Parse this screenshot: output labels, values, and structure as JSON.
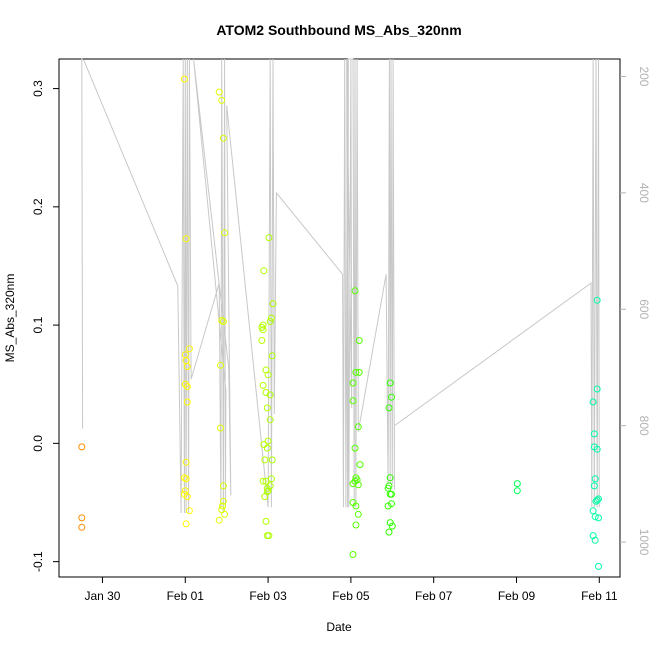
{
  "chart_data": {
    "type": "scatter",
    "title": "ATOM2 Southbound MS_Abs_320nm",
    "xlabel": "Date",
    "ylabel": "MS_Abs_320nm",
    "x_ticks": [
      "Jan 30",
      "Feb 01",
      "Feb 03",
      "Feb 05",
      "Feb 07",
      "Feb 09",
      "Feb 11"
    ],
    "x_tick_days": [
      30,
      32,
      34,
      36,
      38,
      40,
      42
    ],
    "xlim": [
      28.95,
      42.5
    ],
    "ylim": [
      -0.113,
      0.325
    ],
    "y_ticks": [
      -0.1,
      0.0,
      0.1,
      0.2,
      0.3
    ],
    "y_tick_labels": [
      "-0.1",
      "0.0",
      "0.1",
      "0.2",
      "0.3"
    ],
    "y2_ticks": [
      200,
      400,
      600,
      800,
      1000
    ],
    "y2_tick_labels": [
      "200",
      "400",
      "600",
      "800",
      "1000"
    ],
    "y2lim": [
      1060,
      170
    ],
    "grid": false,
    "legend": "none",
    "points": [
      [
        29.5,
        -0.003
      ],
      [
        29.5,
        -0.063
      ],
      [
        29.5,
        -0.071
      ],
      [
        31.98,
        0.308
      ],
      [
        32.02,
        0.173
      ],
      [
        32.0,
        0.075
      ],
      [
        32.02,
        0.07
      ],
      [
        32.1,
        0.08
      ],
      [
        32.05,
        0.065
      ],
      [
        32.0,
        0.05
      ],
      [
        32.05,
        0.048
      ],
      [
        32.05,
        0.035
      ],
      [
        32.02,
        -0.016
      ],
      [
        31.98,
        -0.029
      ],
      [
        32.02,
        -0.03
      ],
      [
        32.0,
        -0.04
      ],
      [
        31.98,
        -0.043
      ],
      [
        32.05,
        -0.045
      ],
      [
        32.1,
        -0.057
      ],
      [
        32.02,
        -0.068
      ],
      [
        32.82,
        0.297
      ],
      [
        32.88,
        0.29
      ],
      [
        32.92,
        0.258
      ],
      [
        32.95,
        0.178
      ],
      [
        32.88,
        0.104
      ],
      [
        32.92,
        0.103
      ],
      [
        32.85,
        0.066
      ],
      [
        32.85,
        0.013
      ],
      [
        32.92,
        -0.036
      ],
      [
        32.92,
        -0.049
      ],
      [
        32.9,
        -0.053
      ],
      [
        32.88,
        -0.056
      ],
      [
        32.95,
        -0.06
      ],
      [
        32.82,
        -0.065
      ],
      [
        34.02,
        0.174
      ],
      [
        34.12,
        0.118
      ],
      [
        34.08,
        0.106
      ],
      [
        34.05,
        0.103
      ],
      [
        34.1,
        0.074
      ],
      [
        34.0,
        0.058
      ],
      [
        34.05,
        0.041
      ],
      [
        34.05,
        0.02
      ],
      [
        34.0,
        0.002
      ],
      [
        34.1,
        -0.014
      ],
      [
        34.08,
        -0.03
      ],
      [
        34.05,
        -0.036
      ],
      [
        34.0,
        -0.04
      ],
      [
        33.98,
        -0.078
      ],
      [
        34.02,
        -0.078
      ],
      [
        33.9,
        0.146
      ],
      [
        33.88,
        0.1
      ],
      [
        33.85,
        0.098
      ],
      [
        33.88,
        0.096
      ],
      [
        33.85,
        0.087
      ],
      [
        33.95,
        0.062
      ],
      [
        33.88,
        0.049
      ],
      [
        33.95,
        0.043
      ],
      [
        33.98,
        0.03
      ],
      [
        33.9,
        -0.001
      ],
      [
        33.98,
        -0.004
      ],
      [
        33.92,
        -0.014
      ],
      [
        33.88,
        -0.032
      ],
      [
        33.95,
        -0.032
      ],
      [
        33.98,
        -0.038
      ],
      [
        33.92,
        -0.045
      ],
      [
        33.98,
        -0.041
      ],
      [
        33.95,
        -0.066
      ],
      [
        36.1,
        0.129
      ],
      [
        36.2,
        0.087
      ],
      [
        36.12,
        0.06
      ],
      [
        36.2,
        0.06
      ],
      [
        36.05,
        0.051
      ],
      [
        36.05,
        0.036
      ],
      [
        36.18,
        0.014
      ],
      [
        36.1,
        -0.004
      ],
      [
        36.22,
        -0.018
      ],
      [
        36.12,
        -0.029
      ],
      [
        36.15,
        -0.031
      ],
      [
        36.1,
        -0.032
      ],
      [
        36.05,
        -0.034
      ],
      [
        36.18,
        -0.035
      ],
      [
        36.05,
        -0.05
      ],
      [
        36.12,
        -0.053
      ],
      [
        36.18,
        -0.06
      ],
      [
        36.12,
        -0.069
      ],
      [
        36.05,
        -0.094
      ],
      [
        36.95,
        0.051
      ],
      [
        36.98,
        0.039
      ],
      [
        36.92,
        0.03
      ],
      [
        36.95,
        -0.029
      ],
      [
        36.92,
        -0.036
      ],
      [
        36.9,
        -0.038
      ],
      [
        36.98,
        -0.043
      ],
      [
        36.95,
        -0.043
      ],
      [
        36.98,
        -0.051
      ],
      [
        36.9,
        -0.053
      ],
      [
        36.95,
        -0.067
      ],
      [
        37.0,
        -0.07
      ],
      [
        36.92,
        -0.075
      ],
      [
        40.02,
        -0.034
      ],
      [
        40.02,
        -0.04
      ],
      [
        41.95,
        0.121
      ],
      [
        41.95,
        0.046
      ],
      [
        41.85,
        0.035
      ],
      [
        41.88,
        0.008
      ],
      [
        41.88,
        -0.003
      ],
      [
        41.95,
        -0.005
      ],
      [
        41.9,
        -0.03
      ],
      [
        41.88,
        -0.036
      ],
      [
        41.98,
        -0.047
      ],
      [
        41.92,
        -0.049
      ],
      [
        41.95,
        -0.048
      ],
      [
        41.85,
        -0.057
      ],
      [
        41.9,
        -0.062
      ],
      [
        41.98,
        -0.063
      ],
      [
        41.85,
        -0.078
      ],
      [
        41.9,
        -0.082
      ],
      [
        41.98,
        -0.104
      ]
    ],
    "colors": {
      "line": "#c8c8c8",
      "axis": "#000000",
      "right_axis": "#b3b3b3",
      "point_early": "#ff8c00",
      "point_late": "#00ffa0"
    },
    "line_y2": [
      [
        29.52,
        805
      ],
      [
        29.5,
        170
      ],
      [
        29.55,
        172
      ],
      [
        31.82,
        560
      ],
      [
        31.9,
        950
      ],
      [
        31.95,
        170
      ],
      [
        31.98,
        950
      ],
      [
        32.0,
        170
      ],
      [
        32.02,
        950
      ],
      [
        32.05,
        170
      ],
      [
        32.08,
        950
      ],
      [
        32.1,
        170
      ],
      [
        32.14,
        720
      ],
      [
        32.82,
        555
      ],
      [
        32.86,
        940
      ],
      [
        32.88,
        170
      ],
      [
        32.92,
        950
      ],
      [
        32.95,
        170
      ],
      [
        32.97,
        940
      ],
      [
        32.98,
        740
      ],
      [
        32.2,
        170
      ],
      [
        33.05,
        700
      ],
      [
        33.1,
        920
      ],
      [
        33.0,
        250
      ],
      [
        34.0,
        940
      ],
      [
        34.05,
        170
      ],
      [
        34.08,
        940
      ],
      [
        34.12,
        170
      ],
      [
        34.15,
        780
      ],
      [
        34.2,
        400
      ],
      [
        35.8,
        540
      ],
      [
        35.82,
        940
      ],
      [
        35.85,
        170
      ],
      [
        35.88,
        940
      ],
      [
        35.92,
        170
      ],
      [
        35.95,
        940
      ],
      [
        36.0,
        170
      ],
      [
        36.02,
        770
      ],
      [
        35.9,
        160
      ],
      [
        35.92,
        940
      ],
      [
        35.94,
        170
      ],
      [
        36.05,
        170
      ],
      [
        36.08,
        940
      ],
      [
        36.1,
        170
      ],
      [
        36.12,
        940
      ],
      [
        36.15,
        170
      ],
      [
        36.18,
        800
      ],
      [
        36.18,
        810
      ],
      [
        36.85,
        540
      ],
      [
        36.9,
        900
      ],
      [
        36.93,
        170
      ],
      [
        36.95,
        900
      ],
      [
        36.97,
        170
      ],
      [
        37.0,
        900
      ],
      [
        37.02,
        170
      ],
      [
        37.05,
        910
      ],
      [
        37.05,
        800
      ],
      [
        41.8,
        555
      ],
      [
        41.82,
        940
      ],
      [
        41.85,
        170
      ],
      [
        41.88,
        940
      ],
      [
        41.92,
        170
      ],
      [
        41.95,
        940
      ],
      [
        41.98,
        170
      ],
      [
        42.0,
        940
      ]
    ]
  }
}
